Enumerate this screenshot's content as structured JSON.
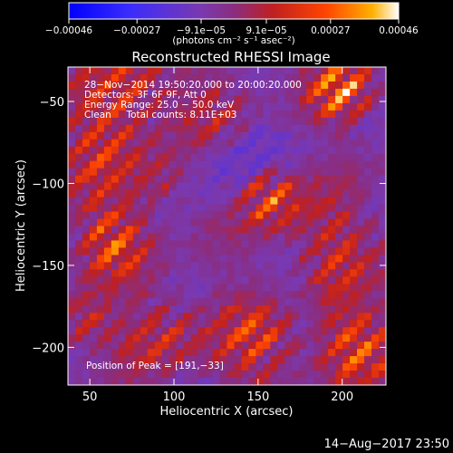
{
  "chart_data": {
    "type": "heatmap",
    "title": "Reconstructed RHESSI Image",
    "xlabel": "Heliocentric X (arcsec)",
    "ylabel": "Heliocentric Y (arcsec)",
    "xlim": [
      37,
      226
    ],
    "ylim": [
      -223,
      -29
    ],
    "x_ticks": [
      50,
      100,
      150,
      200
    ],
    "y_ticks": [
      -50,
      -100,
      -150,
      -200
    ],
    "x_tick_labels": [
      "50",
      "100",
      "150",
      "200"
    ],
    "y_tick_labels": [
      "−50",
      "−100",
      "−150",
      "−200"
    ],
    "colorbar": {
      "ticks": [
        -0.00046,
        -0.00027,
        -9.1e-05,
        9.1e-05,
        0.00027,
        0.00046
      ],
      "tick_labels": [
        "−0.00046",
        "−0.00027",
        "−9.1e−05",
        "9.1e−05",
        "0.00027",
        "0.00046"
      ],
      "units_label": "(photons cm⁻² s⁻¹ asec⁻²)",
      "range": [
        -0.00046,
        0.00046
      ],
      "colors": [
        "#0000ff",
        "#4b2cff",
        "#7a39b0",
        "#b02c2c",
        "#ff3300",
        "#ff9a00",
        "#ffffff"
      ]
    },
    "annotations": [
      "28−Nov−2014 19:50:20.000 to 20:00:20.000",
      "Detectors: 3F 6F 9F, Att 0",
      "Energy Range: 25.0 − 50.0 keV",
      "Clean     Total counts: 8.11E+03"
    ],
    "peak_label": "Position of Peak = [191,−33]",
    "peak": [
      191,
      -33
    ],
    "grid": false,
    "legend": "none"
  },
  "footer": {
    "timestamp": "14−Aug−2017 23:50"
  }
}
